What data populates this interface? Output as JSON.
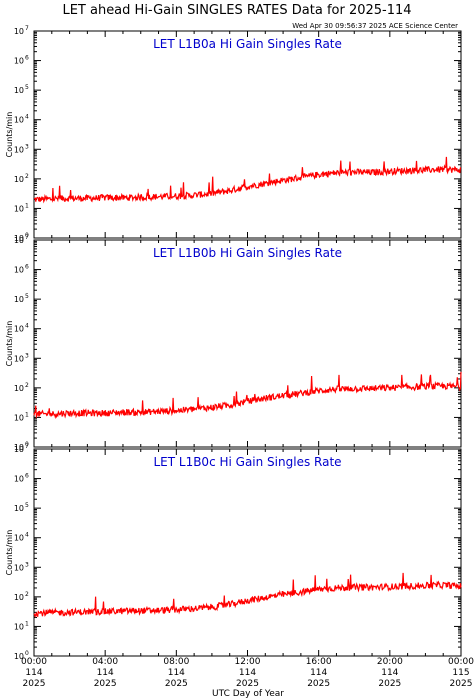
{
  "page": {
    "title": "LET ahead Hi-Gain SINGLES RATES Data for 2025-114",
    "timestamp": "Wed Apr 30 09:56:37 2025 ACE Science Center",
    "xlabel": "UTC Day of Year"
  },
  "colors": {
    "series": "#ff0000",
    "panel_title": "#0000cc",
    "axis": "#000000"
  },
  "chart_data": [
    {
      "type": "line",
      "title": "LET L1B0a Hi Gain Singles Rate",
      "ylabel": "Counts/min",
      "yscale": "log",
      "ylim": [
        1,
        10000000
      ],
      "y_ticks": [
        "10",
        "10",
        "10",
        "10",
        "10",
        "10",
        "10",
        "10"
      ],
      "y_tick_exponents": [
        "0",
        "1",
        "2",
        "3",
        "4",
        "5",
        "6",
        "7"
      ],
      "xlim": [
        0,
        24
      ],
      "x": [
        0,
        1,
        2,
        3,
        4,
        5,
        6,
        7,
        8,
        9,
        10,
        11,
        12,
        13,
        14,
        15,
        16,
        17,
        18,
        19,
        20,
        21,
        22,
        23,
        24
      ],
      "series": [
        {
          "values": [
            20,
            21,
            22,
            22,
            23,
            23,
            24,
            25,
            26,
            28,
            32,
            40,
            55,
            70,
            90,
            110,
            140,
            160,
            170,
            165,
            180,
            190,
            200,
            210,
            200
          ]
        }
      ]
    },
    {
      "type": "line",
      "title": "LET L1B0b Hi Gain Singles Rate",
      "ylabel": "Counts/min",
      "yscale": "log",
      "ylim": [
        1,
        10000000
      ],
      "y_ticks": [
        "10",
        "10",
        "10",
        "10",
        "10",
        "10",
        "10",
        "10"
      ],
      "y_tick_exponents": [
        "0",
        "1",
        "2",
        "3",
        "4",
        "5",
        "6",
        "7"
      ],
      "xlim": [
        0,
        24
      ],
      "x": [
        0,
        1,
        2,
        3,
        4,
        5,
        6,
        7,
        8,
        9,
        10,
        11,
        12,
        13,
        14,
        15,
        16,
        17,
        18,
        19,
        20,
        21,
        22,
        23,
        24
      ],
      "series": [
        {
          "values": [
            13,
            13,
            14,
            14,
            14,
            15,
            15,
            16,
            17,
            19,
            22,
            26,
            35,
            45,
            55,
            65,
            80,
            90,
            95,
            95,
            100,
            105,
            110,
            115,
            110
          ]
        }
      ]
    },
    {
      "type": "line",
      "title": "LET L1B0c Hi Gain Singles Rate",
      "ylabel": "Counts/min",
      "yscale": "log",
      "ylim": [
        1,
        10000000
      ],
      "y_ticks": [
        "10",
        "10",
        "10",
        "10",
        "10",
        "10",
        "10",
        "10"
      ],
      "y_tick_exponents": [
        "0",
        "1",
        "2",
        "3",
        "4",
        "5",
        "6",
        "7"
      ],
      "xlim": [
        0,
        24
      ],
      "x": [
        0,
        1,
        2,
        3,
        4,
        5,
        6,
        7,
        8,
        9,
        10,
        11,
        12,
        13,
        14,
        15,
        16,
        17,
        18,
        19,
        20,
        21,
        22,
        23,
        24
      ],
      "series": [
        {
          "values": [
            28,
            29,
            30,
            31,
            32,
            33,
            34,
            35,
            37,
            40,
            45,
            55,
            75,
            95,
            120,
            145,
            180,
            200,
            210,
            210,
            220,
            230,
            240,
            250,
            230
          ]
        }
      ]
    }
  ],
  "x_ticks": [
    {
      "time": "00:00",
      "day": "114",
      "year": "2025",
      "x": 0
    },
    {
      "time": "04:00",
      "day": "114",
      "year": "2025",
      "x": 4
    },
    {
      "time": "08:00",
      "day": "114",
      "year": "2025",
      "x": 8
    },
    {
      "time": "12:00",
      "day": "114",
      "year": "2025",
      "x": 12
    },
    {
      "time": "16:00",
      "day": "114",
      "year": "2025",
      "x": 16
    },
    {
      "time": "20:00",
      "day": "114",
      "year": "2025",
      "x": 20
    },
    {
      "time": "00:00",
      "day": "115",
      "year": "2025",
      "x": 24
    }
  ]
}
